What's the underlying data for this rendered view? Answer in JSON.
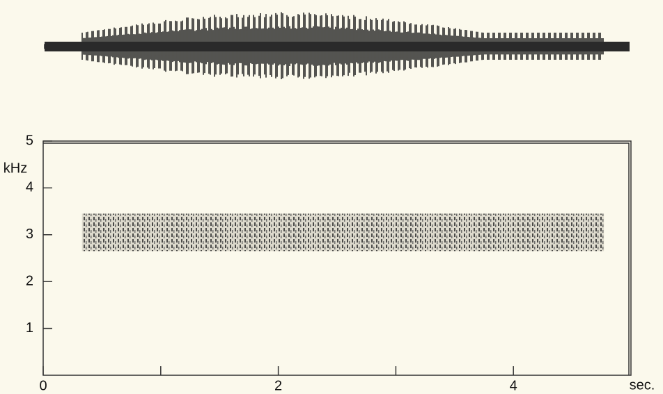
{
  "chart_data": {
    "type": "spectrogram",
    "ylabel": "kHz",
    "xlabel": "sec.",
    "xlim": [
      0,
      5
    ],
    "ylim": [
      0,
      5
    ],
    "xticks": [
      0,
      2,
      4
    ],
    "xminorticks": [
      1,
      3
    ],
    "yticks": [
      1,
      2,
      3,
      4,
      5
    ],
    "band": {
      "start": 0.33,
      "end": 4.77,
      "low": 2.65,
      "high": 3.45
    },
    "color": "#2a2a2a"
  }
}
